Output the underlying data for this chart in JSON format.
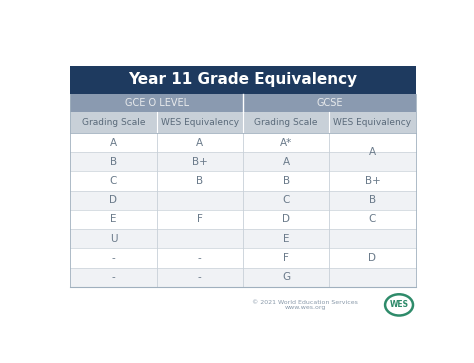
{
  "title": "Year 11 Grade Equivalency",
  "title_bg": "#1e3a5f",
  "title_color": "#ffffff",
  "title_fontsize": 11,
  "section_bg": "#8a9ab0",
  "subheader_bg": "#c8d0d8",
  "row_bg_white": "#ffffff",
  "row_bg_light": "#f0f2f5",
  "cell_text_color": "#6a7a8a",
  "subheader_text_color": "#5a6a7a",
  "header_text_color": "#e8eaec",
  "divider_color": "#c8d0d8",
  "bg_color": "#ffffff",
  "border_color": "#a0b0be",
  "section_headers": [
    "GCE O LEVEL",
    "GCSE"
  ],
  "col_headers": [
    "Grading Scale",
    "WES Equivalency",
    "Grading Scale",
    "WES Equivalency"
  ],
  "rows": [
    [
      "A",
      "A",
      "A*",
      ""
    ],
    [
      "B",
      "B+",
      "A",
      ""
    ],
    [
      "C",
      "B",
      "B",
      "B+"
    ],
    [
      "D",
      "",
      "C",
      "B"
    ],
    [
      "E",
      "F",
      "D",
      "C"
    ],
    [
      "U",
      "",
      "E",
      ""
    ],
    [
      "-",
      "-",
      "F",
      ""
    ],
    [
      "-",
      "-",
      "G",
      ""
    ]
  ],
  "col3_merges": [
    {
      "rows": [
        0,
        1
      ],
      "text": "A"
    },
    {
      "rows": [
        2,
        2
      ],
      "text": "B+"
    },
    {
      "rows": [
        3,
        3
      ],
      "text": "B"
    },
    {
      "rows": [
        4,
        4
      ],
      "text": "C"
    },
    {
      "rows": [
        5,
        7
      ],
      "text": "D"
    }
  ],
  "footer_text": "© 2021 World Education Services\nwww.wes.org",
  "footer_color": "#8a9aaa",
  "wes_circle_color": "#2e8b6a",
  "figsize": [
    4.74,
    3.63
  ],
  "dpi": 100
}
